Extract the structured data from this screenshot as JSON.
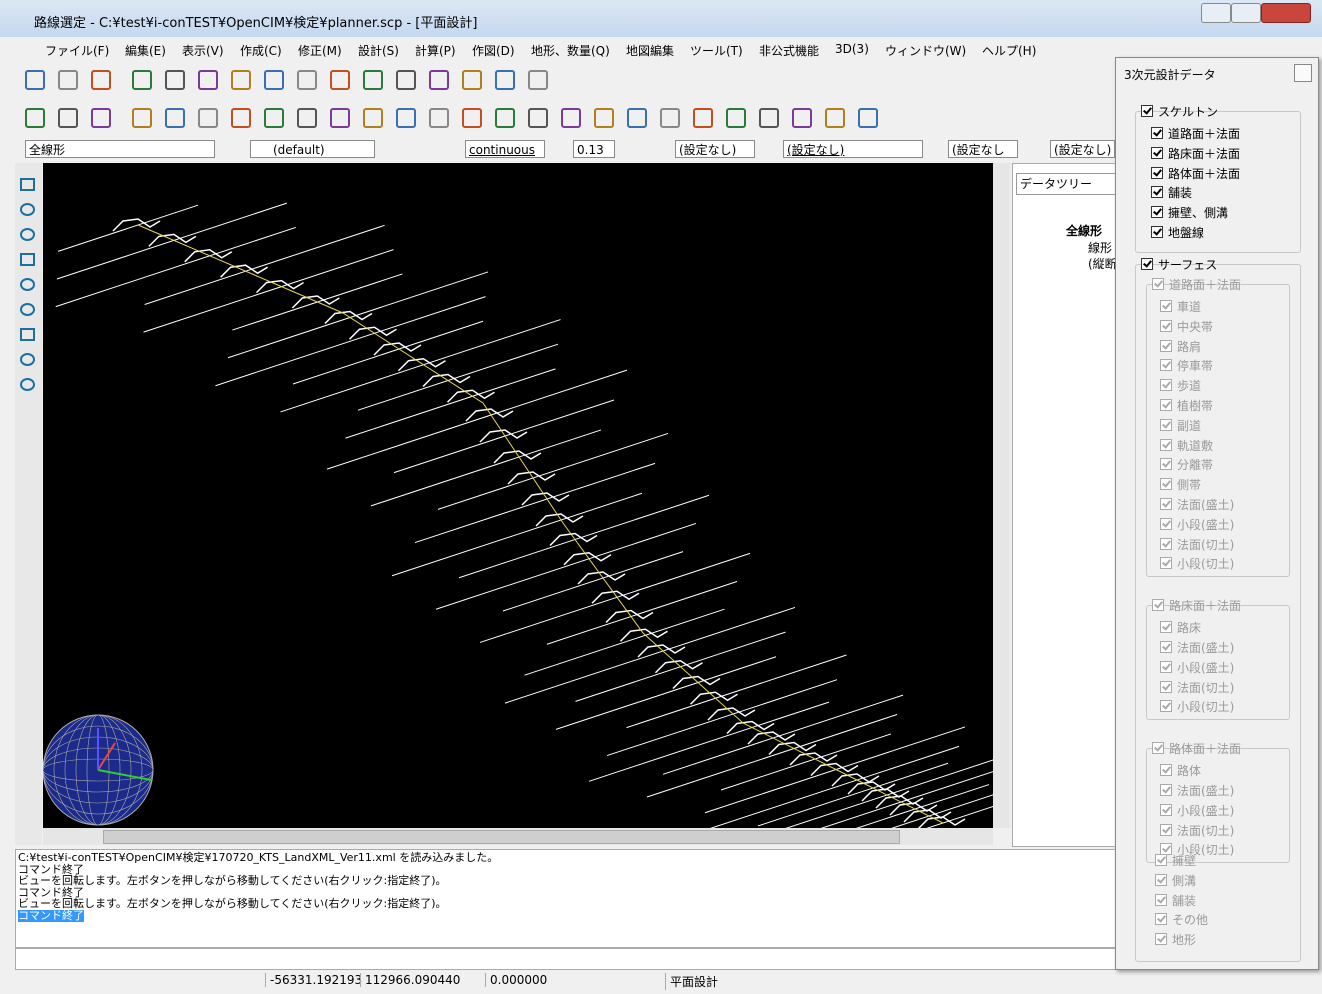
{
  "window": {
    "title": "路線選定 - C:¥test¥i-conTEST¥OpenCIM¥検定¥planner.scp - [平面設計]"
  },
  "menu": [
    "ファイル(F)",
    "編集(E)",
    "表示(V)",
    "作成(C)",
    "修正(M)",
    "設計(S)",
    "計算(P)",
    "作図(D)",
    "地形、数量(Q)",
    "地図編集",
    "ツール(T)",
    "非公式機能",
    "3D(3)",
    "ウィンドウ(W)",
    "ヘルプ(H)"
  ],
  "property_bar": {
    "layer": "全線形",
    "color": "(default)",
    "linetype": "continuous",
    "lineweight": "0.13",
    "setting_1": "(設定なし)",
    "setting_2": "(設定なし)",
    "setting_3": "(設定なし",
    "setting_4": "(設定なし)"
  },
  "data_tree": {
    "tab": "データツリー",
    "nodes": [
      "全線形",
      "線形",
      "(縦断"
    ]
  },
  "log": [
    "C:¥test¥i-conTEST¥OpenCIM¥検定¥170720_KTS_LandXML_Ver11.xml を読み込みました。",
    "コマンド終了",
    "ビューを回転します。左ボタンを押しながら移動してください(右クリック:指定終了)。",
    "コマンド終了",
    "ビューを回転します。左ボタンを押しながら移動してください(右クリック:指定終了)。",
    "コマンド終了"
  ],
  "status": [
    "-56331.192193",
    "112966.090440",
    "0.000000",
    "平面設計"
  ],
  "design_panel": {
    "title": "3次元設計データ",
    "skeleton": {
      "label": "スケルトン",
      "items": [
        "道路面＋法面",
        "路床面＋法面",
        "路体面＋法面",
        "舗装",
        "擁壁、側溝",
        "地盤線"
      ]
    },
    "surface": {
      "label": "サーフェス",
      "groups": [
        {
          "label": "道路面＋法面",
          "items": [
            "車道",
            "中央帯",
            "路肩",
            "停車帯",
            "歩道",
            "植樹帯",
            "副道",
            "軌道敷",
            "分離帯",
            "側帯",
            "法面(盛土)",
            "小段(盛土)",
            "法面(切土)",
            "小段(切土)"
          ]
        },
        {
          "label": "路床面＋法面",
          "items": [
            "路床",
            "法面(盛土)",
            "小段(盛土)",
            "法面(切土)",
            "小段(切土)"
          ]
        },
        {
          "label": "路体面＋法面",
          "items": [
            "路体",
            "法面(盛土)",
            "小段(盛土)",
            "法面(切土)",
            "小段(切土)"
          ]
        }
      ],
      "items": [
        "擁壁",
        "側溝",
        "舗装",
        "その他",
        "地形"
      ]
    }
  }
}
